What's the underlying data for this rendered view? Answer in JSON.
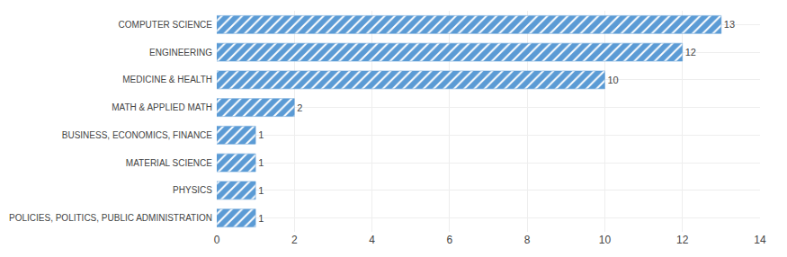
{
  "chart_data": {
    "type": "bar",
    "orientation": "horizontal",
    "categories": [
      "COMPUTER SCIENCE",
      "ENGINEERING",
      "MEDICINE & HEALTH",
      "MATH & APPLIED MATH",
      "BUSINESS, ECONOMICS, FINANCE",
      "MATERIAL SCIENCE",
      "PHYSICS",
      "POLICIES, POLITICS, PUBLIC ADMINISTRATION"
    ],
    "values": [
      13,
      12,
      10,
      2,
      1,
      1,
      1,
      1
    ],
    "color": "#5B9BD5",
    "xlim": [
      0,
      14
    ],
    "xticks": [
      0,
      2,
      4,
      6,
      8,
      10,
      12,
      14
    ],
    "grid": true,
    "data_labels": true
  }
}
